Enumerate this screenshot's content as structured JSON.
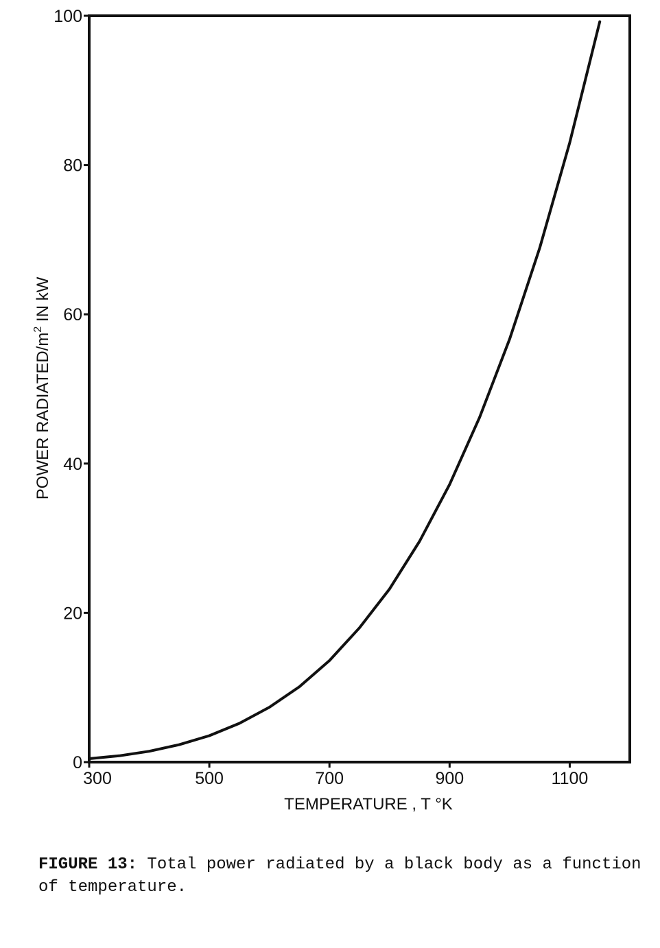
{
  "chart_data": {
    "type": "line",
    "title": "",
    "xlabel": "TEMPERATURE , T °K",
    "ylabel_main": "POWER RADIATED/m",
    "ylabel_sup": "2",
    "ylabel_tail": " IN kW",
    "xlim": [
      300,
      1200
    ],
    "ylim": [
      0,
      100
    ],
    "x_ticks": [
      300,
      500,
      700,
      900,
      1100
    ],
    "y_ticks": [
      0,
      20,
      40,
      60,
      80,
      100
    ],
    "x_tick_labels": [
      "300",
      "500",
      "700",
      "900",
      "1100"
    ],
    "y_tick_labels": [
      "0",
      "20",
      "40",
      "60",
      "80",
      "100"
    ],
    "grid": false,
    "series": [
      {
        "x": [
          300,
          350,
          400,
          450,
          500,
          550,
          600,
          650,
          700,
          750,
          800,
          850,
          900,
          950,
          1000,
          1050,
          1100,
          1150
        ],
        "y": [
          0.46,
          0.85,
          1.45,
          2.33,
          3.54,
          5.19,
          7.35,
          10.1,
          13.6,
          18.0,
          23.2,
          29.6,
          37.2,
          46.2,
          56.7,
          68.9,
          83.0,
          99.2
        ]
      }
    ]
  },
  "caption": {
    "label": "FIGURE 13:",
    "text": " Total power radiated by a black body as a function of temperature."
  }
}
